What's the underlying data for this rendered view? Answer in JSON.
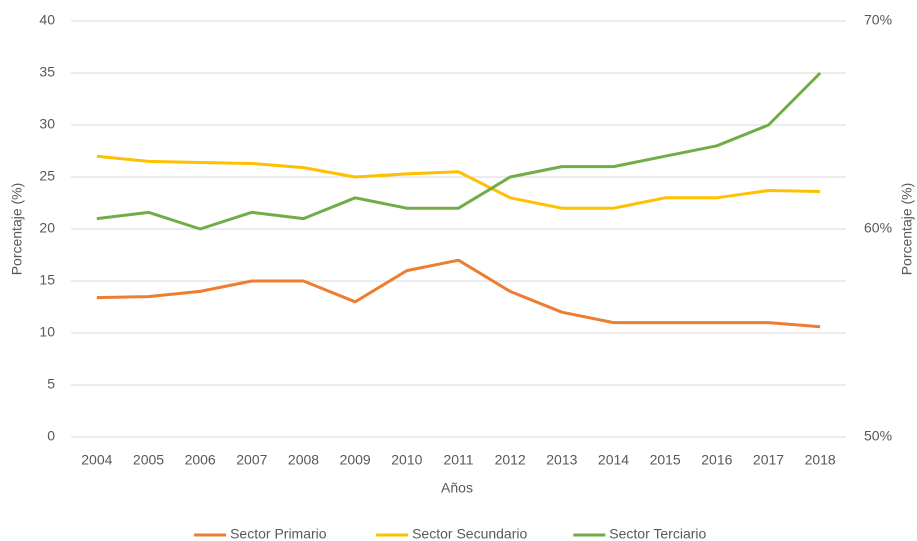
{
  "chart_data": {
    "type": "line",
    "categories": [
      "2004",
      "2005",
      "2006",
      "2007",
      "2008",
      "2009",
      "2010",
      "2011",
      "2012",
      "2013",
      "2014",
      "2015",
      "2016",
      "2017",
      "2018"
    ],
    "series": [
      {
        "name": "Sector Primario",
        "color": "#ed7d31",
        "values": [
          13.4,
          13.5,
          14,
          15,
          15,
          13,
          16,
          17,
          14,
          12,
          11,
          11,
          11,
          11,
          10.6
        ]
      },
      {
        "name": "Sector Secundario",
        "color": "#ffc000",
        "values": [
          27,
          26.5,
          26.4,
          26.3,
          25.9,
          25,
          25.3,
          25.5,
          23,
          22,
          22,
          23,
          23,
          23.7,
          23.6
        ]
      },
      {
        "name": "Sector Terciario",
        "color": "#70ad47",
        "axis": "y2",
        "values": [
          60.5,
          60.8,
          60,
          60.8,
          60.5,
          61.5,
          61,
          61,
          62.5,
          63,
          63,
          63.5,
          64,
          65,
          67.5
        ]
      }
    ],
    "xlabel": "Años",
    "ylabel": "Porcentaje (%)",
    "y2label": "Porcentaje (%)",
    "ylim": [
      0,
      40
    ],
    "yticks": [
      0,
      5,
      10,
      15,
      20,
      25,
      30,
      35,
      40
    ],
    "y2lim": [
      50,
      70
    ],
    "y2ticks": [
      {
        "value": 50,
        "label": "50%"
      },
      {
        "value": 60,
        "label": "60%"
      },
      {
        "value": 70,
        "label": "70%"
      }
    ],
    "grid": true,
    "legend": "bottom"
  }
}
